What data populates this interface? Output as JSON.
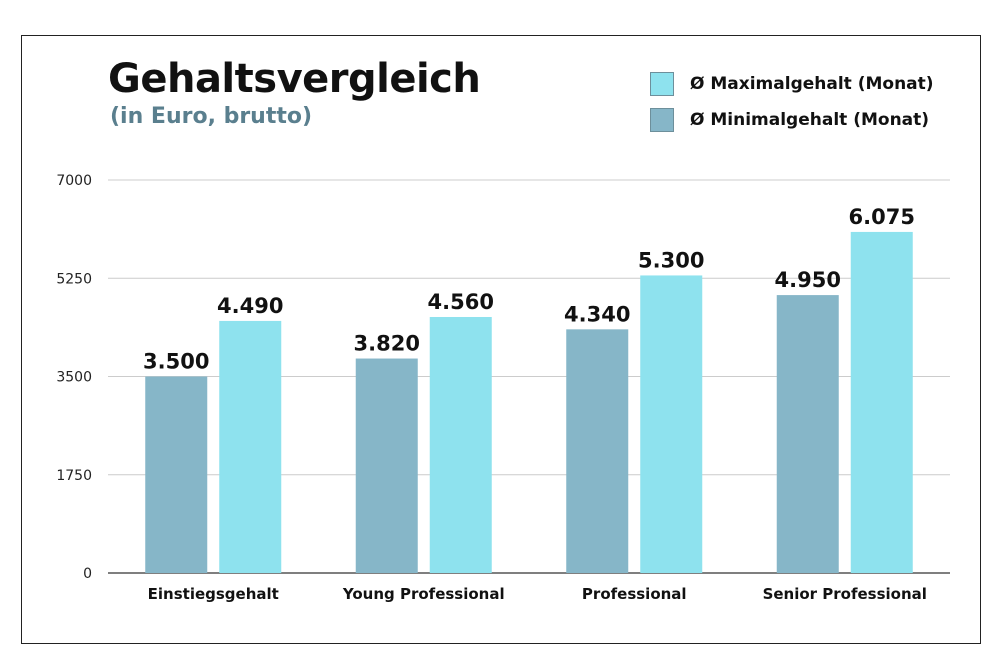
{
  "header": {
    "title": "Gehaltsvergleich",
    "subtitle": "(in Euro, brutto)"
  },
  "legend": {
    "max_label": "Ø Maximalgehalt (Monat)",
    "min_label": "Ø Minimalgehalt (Monat)"
  },
  "colors": {
    "min": "#86b6c8",
    "max": "#8ee2ee",
    "grid": "#cccccc",
    "axis": "#333333",
    "subtitle": "#5a7f8e"
  },
  "chart_data": {
    "type": "bar",
    "title": "Gehaltsvergleich",
    "subtitle": "(in Euro, brutto)",
    "categories": [
      "Einstiegsgehalt",
      "Young Professional",
      "Professional",
      "Senior Professional"
    ],
    "series": [
      {
        "name": "Ø Minimalgehalt (Monat)",
        "values": [
          3500,
          3820,
          4340,
          4950
        ],
        "labels": [
          "3.500",
          "3.820",
          "4.340",
          "4.950"
        ]
      },
      {
        "name": "Ø Maximalgehalt (Monat)",
        "values": [
          4490,
          4560,
          5300,
          6075
        ],
        "labels": [
          "4.490",
          "4.560",
          "5.300",
          "6.075"
        ]
      }
    ],
    "yticks": [
      0,
      1750,
      3500,
      5250,
      7000
    ],
    "ylim": [
      0,
      7000
    ],
    "grid": true,
    "legend_position": "top-right"
  }
}
